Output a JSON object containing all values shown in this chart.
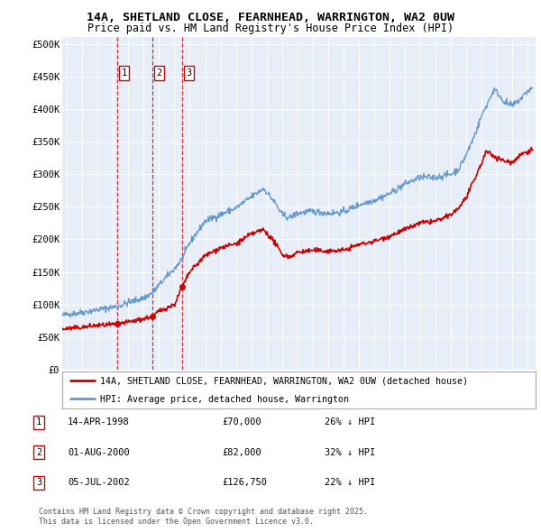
{
  "title_line1": "14A, SHETLAND CLOSE, FEARNHEAD, WARRINGTON, WA2 0UW",
  "title_line2": "Price paid vs. HM Land Registry's House Price Index (HPI)",
  "ylabel_ticks": [
    "£0",
    "£50K",
    "£100K",
    "£150K",
    "£200K",
    "£250K",
    "£300K",
    "£350K",
    "£400K",
    "£450K",
    "£500K"
  ],
  "ytick_vals": [
    0,
    50000,
    100000,
    150000,
    200000,
    250000,
    300000,
    350000,
    400000,
    450000,
    500000
  ],
  "xlim_start": 1994.7,
  "xlim_end": 2025.5,
  "ylim_min": 0,
  "ylim_max": 510000,
  "legend_line1": "14A, SHETLAND CLOSE, FEARNHEAD, WARRINGTON, WA2 0UW (detached house)",
  "legend_line2": "HPI: Average price, detached house, Warrington",
  "red_color": "#cc0000",
  "blue_color": "#6699cc",
  "transactions": [
    {
      "num": 1,
      "date": "14-APR-1998",
      "date_x": 1998.28,
      "price": 70000,
      "pct": "26%",
      "dir": "↓"
    },
    {
      "num": 2,
      "date": "01-AUG-2000",
      "date_x": 2000.58,
      "price": 82000,
      "pct": "32%",
      "dir": "↓"
    },
    {
      "num": 3,
      "date": "05-JUL-2002",
      "date_x": 2002.51,
      "price": 126750,
      "pct": "22%",
      "dir": "↓"
    }
  ],
  "footer_line1": "Contains HM Land Registry data © Crown copyright and database right 2025.",
  "footer_line2": "This data is licensed under the Open Government Licence v3.0.",
  "background_color": "#ffffff",
  "plot_bg_color": "#e8eef8"
}
